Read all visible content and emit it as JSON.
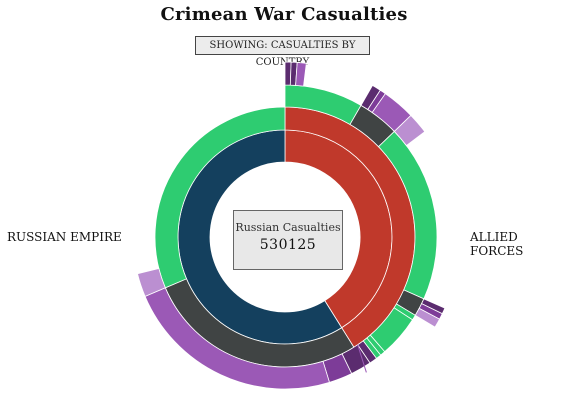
{
  "page": {
    "title": "Crimean War Casualties"
  },
  "controls": {
    "view_toggle": "SHOWING: CASUALTIES BY COUNTRY"
  },
  "labels": {
    "left": "RUSSIAN EMPIRE",
    "right": "ALLIED FORCES"
  },
  "center": {
    "label": "Russian Casualties",
    "value": "530125"
  },
  "colors": {
    "russia": "#14405e",
    "allies": "#c0392b",
    "green": "#2ecc71",
    "dark": "#404444",
    "purple": "#9b59b6",
    "light_purple": "#bb8fd1",
    "deep_purple": "#5b2c6f",
    "mid_purple": "#7d3c98"
  },
  "chart_data": {
    "type": "sunburst",
    "segments": [
      {
        "ring": 1,
        "start": 0,
        "end": 148,
        "color": "#c0392b"
      },
      {
        "ring": 1,
        "start": 148,
        "end": 360,
        "color": "#14405e"
      },
      {
        "ring": 2,
        "start": 0,
        "end": 148,
        "color": "#c0392b"
      },
      {
        "ring": 2,
        "start": 148,
        "end": 247,
        "color": "#404444"
      },
      {
        "ring": 2,
        "start": 247,
        "end": 360,
        "color": "#2ecc71"
      },
      {
        "ring": 3,
        "start": 0,
        "end": 30,
        "color": "#2ecc71"
      },
      {
        "ring": 3,
        "start": 30,
        "end": 46,
        "color": "#404444"
      },
      {
        "ring": 3,
        "start": 46,
        "end": 114,
        "color": "#2ecc71"
      },
      {
        "ring": 3,
        "start": 114,
        "end": 121,
        "color": "#404444"
      },
      {
        "ring": 3,
        "start": 121,
        "end": 123,
        "color": "#2ecc71"
      },
      {
        "ring": 3,
        "start": 123,
        "end": 139,
        "color": "#2ecc71"
      },
      {
        "ring": 3,
        "start": 139,
        "end": 141,
        "color": "#2ecc71"
      },
      {
        "ring": 3,
        "start": 141,
        "end": 143,
        "color": "#2ecc71"
      },
      {
        "ring": 3,
        "start": 143,
        "end": 146,
        "color": "#5b2c6f"
      },
      {
        "ring": 3,
        "start": 146,
        "end": 154,
        "color": "#5b2c6f"
      },
      {
        "ring": 3,
        "start": 154,
        "end": 163,
        "color": "#7d3c98"
      },
      {
        "ring": 3,
        "start": 163,
        "end": 247,
        "color": "#9b59b6"
      },
      {
        "ring": 3,
        "start": 247,
        "end": 256,
        "color": "#bb8fd1"
      },
      {
        "ring": 4,
        "start": 0,
        "end": 2,
        "color": "#5b2c6f"
      },
      {
        "ring": 4,
        "start": 2,
        "end": 4,
        "color": "#5b2c6f"
      },
      {
        "ring": 4,
        "start": 4,
        "end": 7,
        "color": "#9b59b6"
      },
      {
        "ring": 4,
        "start": 30,
        "end": 33,
        "color": "#5b2c6f"
      },
      {
        "ring": 4,
        "start": 33,
        "end": 35,
        "color": "#7d3c98"
      },
      {
        "ring": 4,
        "start": 35,
        "end": 46,
        "color": "#9b59b6"
      },
      {
        "ring": 4,
        "start": 46,
        "end": 53,
        "color": "#bb8fd1"
      },
      {
        "ring": 4,
        "start": 114,
        "end": 116,
        "color": "#5b2c6f"
      },
      {
        "ring": 4,
        "start": 116,
        "end": 118,
        "color": "#7d3c98"
      },
      {
        "ring": 4,
        "start": 118,
        "end": 121,
        "color": "#bb8fd1"
      }
    ]
  }
}
